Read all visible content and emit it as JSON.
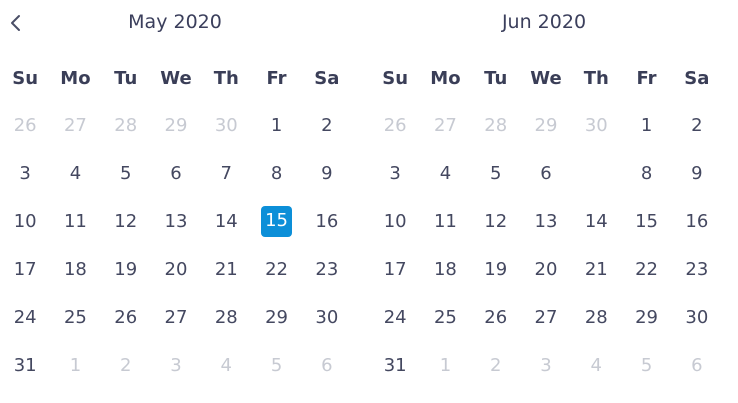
{
  "calendar": {
    "months": [
      {
        "title": "May 2020",
        "weekdays": [
          "Su",
          "Mo",
          "Tu",
          "We",
          "Th",
          "Fr",
          "Sa"
        ],
        "weeks": [
          [
            {
              "label": "26",
              "muted": true
            },
            {
              "label": "27",
              "muted": true
            },
            {
              "label": "28",
              "muted": true
            },
            {
              "label": "29",
              "muted": true
            },
            {
              "label": "30",
              "muted": true
            },
            {
              "label": "1"
            },
            {
              "label": "2"
            }
          ],
          [
            {
              "label": "3"
            },
            {
              "label": "4"
            },
            {
              "label": "5"
            },
            {
              "label": "6"
            },
            {
              "label": "7"
            },
            {
              "label": "8"
            },
            {
              "label": "9"
            }
          ],
          [
            {
              "label": "10"
            },
            {
              "label": "11"
            },
            {
              "label": "12"
            },
            {
              "label": "13"
            },
            {
              "label": "14"
            },
            {
              "label": "15",
              "selected": true
            },
            {
              "label": "16"
            }
          ],
          [
            {
              "label": "17"
            },
            {
              "label": "18"
            },
            {
              "label": "19"
            },
            {
              "label": "20"
            },
            {
              "label": "21"
            },
            {
              "label": "22"
            },
            {
              "label": "23"
            }
          ],
          [
            {
              "label": "24"
            },
            {
              "label": "25"
            },
            {
              "label": "26"
            },
            {
              "label": "27"
            },
            {
              "label": "28"
            },
            {
              "label": "29"
            },
            {
              "label": "30"
            }
          ],
          [
            {
              "label": "31"
            },
            {
              "label": "1",
              "muted": true
            },
            {
              "label": "2",
              "muted": true
            },
            {
              "label": "3",
              "muted": true
            },
            {
              "label": "4",
              "muted": true
            },
            {
              "label": "5",
              "muted": true
            },
            {
              "label": "6",
              "muted": true
            }
          ]
        ]
      },
      {
        "title": "Jun 2020",
        "weekdays": [
          "Su",
          "Mo",
          "Tu",
          "We",
          "Th",
          "Fr",
          "Sa"
        ],
        "weeks": [
          [
            {
              "label": "26",
              "muted": true
            },
            {
              "label": "27",
              "muted": true
            },
            {
              "label": "28",
              "muted": true
            },
            {
              "label": "29",
              "muted": true
            },
            {
              "label": "30",
              "muted": true
            },
            {
              "label": "1"
            },
            {
              "label": "2"
            }
          ],
          [
            {
              "label": "3"
            },
            {
              "label": "4"
            },
            {
              "label": "5"
            },
            {
              "label": "6"
            },
            {
              "label": ""
            },
            {
              "label": "8"
            },
            {
              "label": "9"
            }
          ],
          [
            {
              "label": "10"
            },
            {
              "label": "11"
            },
            {
              "label": "12"
            },
            {
              "label": "13"
            },
            {
              "label": "14"
            },
            {
              "label": "15"
            },
            {
              "label": "16"
            }
          ],
          [
            {
              "label": "17"
            },
            {
              "label": "18"
            },
            {
              "label": "19"
            },
            {
              "label": "20"
            },
            {
              "label": "21"
            },
            {
              "label": "22"
            },
            {
              "label": "23"
            }
          ],
          [
            {
              "label": "24"
            },
            {
              "label": "25"
            },
            {
              "label": "26"
            },
            {
              "label": "27"
            },
            {
              "label": "28"
            },
            {
              "label": "29"
            },
            {
              "label": "30"
            }
          ],
          [
            {
              "label": "31"
            },
            {
              "label": "1",
              "muted": true
            },
            {
              "label": "2",
              "muted": true
            },
            {
              "label": "3",
              "muted": true
            },
            {
              "label": "4",
              "muted": true
            },
            {
              "label": "5",
              "muted": true
            },
            {
              "label": "6",
              "muted": true
            }
          ]
        ]
      }
    ],
    "colors": {
      "text": "#444860",
      "muted": "#c7cad2",
      "selected_bg": "#0c8fd8",
      "selected_text": "#ffffff"
    },
    "icons": {
      "prev": "chevron-left-icon"
    }
  }
}
